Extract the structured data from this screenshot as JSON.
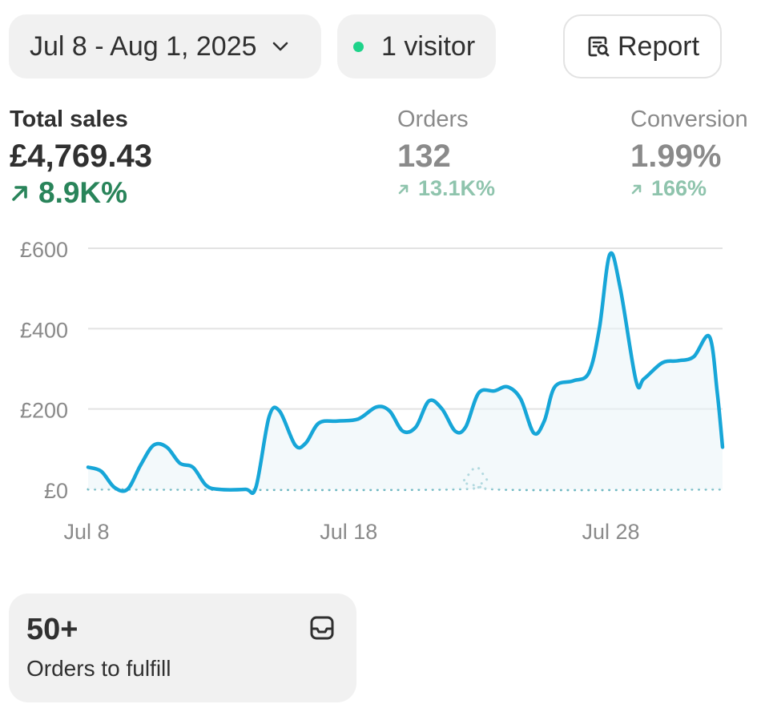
{
  "header": {
    "date_range": "Jul 8 - Aug 1, 2025",
    "visitors": "1 visitor",
    "report_label": "Report"
  },
  "metrics": [
    {
      "label": "Total sales",
      "value": "£4,769.43",
      "change": "8.9K%"
    },
    {
      "label": "Orders",
      "value": "132",
      "change": "13.1K%"
    },
    {
      "label": "Conversion",
      "value": "1.99%",
      "change": "166%"
    }
  ],
  "colors": {
    "accent_line": "#17a6d8",
    "comparison_line": "#6fb8c2",
    "positive": "#29845a",
    "positive_muted": "#8fc4ad",
    "live_dot": "#1ed38a",
    "muted_text": "#8a8a8a",
    "pill_bg": "#f1f1f1"
  },
  "chart_data": {
    "type": "line",
    "ylim": [
      0,
      600
    ],
    "y_ticks": [
      "£0",
      "£200",
      "£400",
      "£600"
    ],
    "y_tick_values": [
      0,
      200,
      400,
      600
    ],
    "x_labels": [
      {
        "label": "Jul 8",
        "day": 8
      },
      {
        "label": "Jul 18",
        "day": 18
      },
      {
        "label": "Jul 28",
        "day": 28
      }
    ],
    "x_domain": [
      8,
      32.2
    ],
    "series": [
      {
        "style": "solid",
        "points": [
          [
            8,
            55
          ],
          [
            8.5,
            45
          ],
          [
            9,
            5
          ],
          [
            9.5,
            0
          ],
          [
            10,
            60
          ],
          [
            10.5,
            110
          ],
          [
            11,
            105
          ],
          [
            11.5,
            65
          ],
          [
            12,
            55
          ],
          [
            12.5,
            10
          ],
          [
            13,
            0
          ],
          [
            14,
            0
          ],
          [
            14.4,
            5
          ],
          [
            14.9,
            180
          ],
          [
            15.3,
            195
          ],
          [
            15.9,
            110
          ],
          [
            16.3,
            115
          ],
          [
            16.8,
            165
          ],
          [
            17.5,
            170
          ],
          [
            18.3,
            175
          ],
          [
            19,
            205
          ],
          [
            19.5,
            195
          ],
          [
            20,
            145
          ],
          [
            20.5,
            155
          ],
          [
            21,
            220
          ],
          [
            21.5,
            200
          ],
          [
            22,
            145
          ],
          [
            22.4,
            155
          ],
          [
            22.9,
            240
          ],
          [
            23.5,
            245
          ],
          [
            24,
            255
          ],
          [
            24.5,
            225
          ],
          [
            25,
            140
          ],
          [
            25.4,
            170
          ],
          [
            25.8,
            255
          ],
          [
            26.5,
            270
          ],
          [
            27.1,
            290
          ],
          [
            27.5,
            400
          ],
          [
            27.9,
            585
          ],
          [
            28.3,
            500
          ],
          [
            28.9,
            270
          ],
          [
            29.2,
            275
          ],
          [
            29.9,
            315
          ],
          [
            30.5,
            320
          ],
          [
            31.1,
            330
          ],
          [
            31.7,
            380
          ],
          [
            32,
            240
          ],
          [
            32.2,
            105
          ]
        ]
      },
      {
        "style": "dotted",
        "points": [
          [
            8,
            0
          ],
          [
            21.8,
            0
          ],
          [
            22.3,
            20
          ],
          [
            22.8,
            55
          ],
          [
            23.2,
            25
          ],
          [
            23.6,
            0
          ],
          [
            32.2,
            0
          ]
        ]
      }
    ]
  },
  "fulfill": {
    "count": "50+",
    "label": "Orders to fulfill"
  }
}
